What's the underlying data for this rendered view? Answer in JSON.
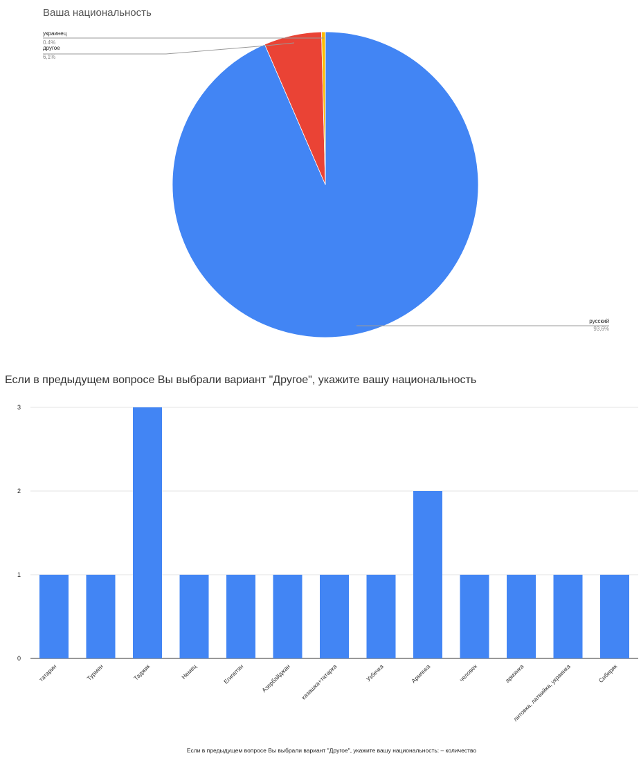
{
  "pie_chart_title": "Ваша национальность",
  "bar_chart_title": "Если в предыдущем вопросе Вы выбрали вариант \"Другое\", укажите вашу национальность",
  "chart_data": [
    {
      "type": "pie",
      "title": "Ваша национальность",
      "slices": [
        {
          "label": "русский",
          "value": 93.6,
          "display": "93,6%",
          "color": "#4285f4"
        },
        {
          "label": "другое",
          "value": 6.1,
          "display": "6,1%",
          "color": "#ea4335"
        },
        {
          "label": "украинец",
          "value": 0.4,
          "display": "0.4%",
          "color": "#fbbc04"
        }
      ]
    },
    {
      "type": "bar",
      "title": "Если в предыдущем вопросе Вы выбрали вариант \"Другое\", укажите вашу национальность",
      "xlabel": "Если в предыдущем вопросе Вы выбрали вариант \"Другое\", укажите вашу национальность: – количество",
      "ylabel": "",
      "ylim": [
        0,
        3
      ],
      "yticks": [
        0,
        1,
        2,
        3
      ],
      "color": "#4285f4",
      "categories": [
        "татарин",
        "Турмен",
        "Таджик",
        "Немец",
        "Египетян",
        "Азербайджан",
        "казашка+татарка",
        "Узбечка",
        "Армянка",
        "человек",
        "армянка",
        "литовка, латвийка, украинка",
        "Сибиряк"
      ],
      "values": [
        1,
        1,
        3,
        1,
        1,
        1,
        1,
        1,
        2,
        1,
        1,
        1,
        1
      ]
    }
  ]
}
